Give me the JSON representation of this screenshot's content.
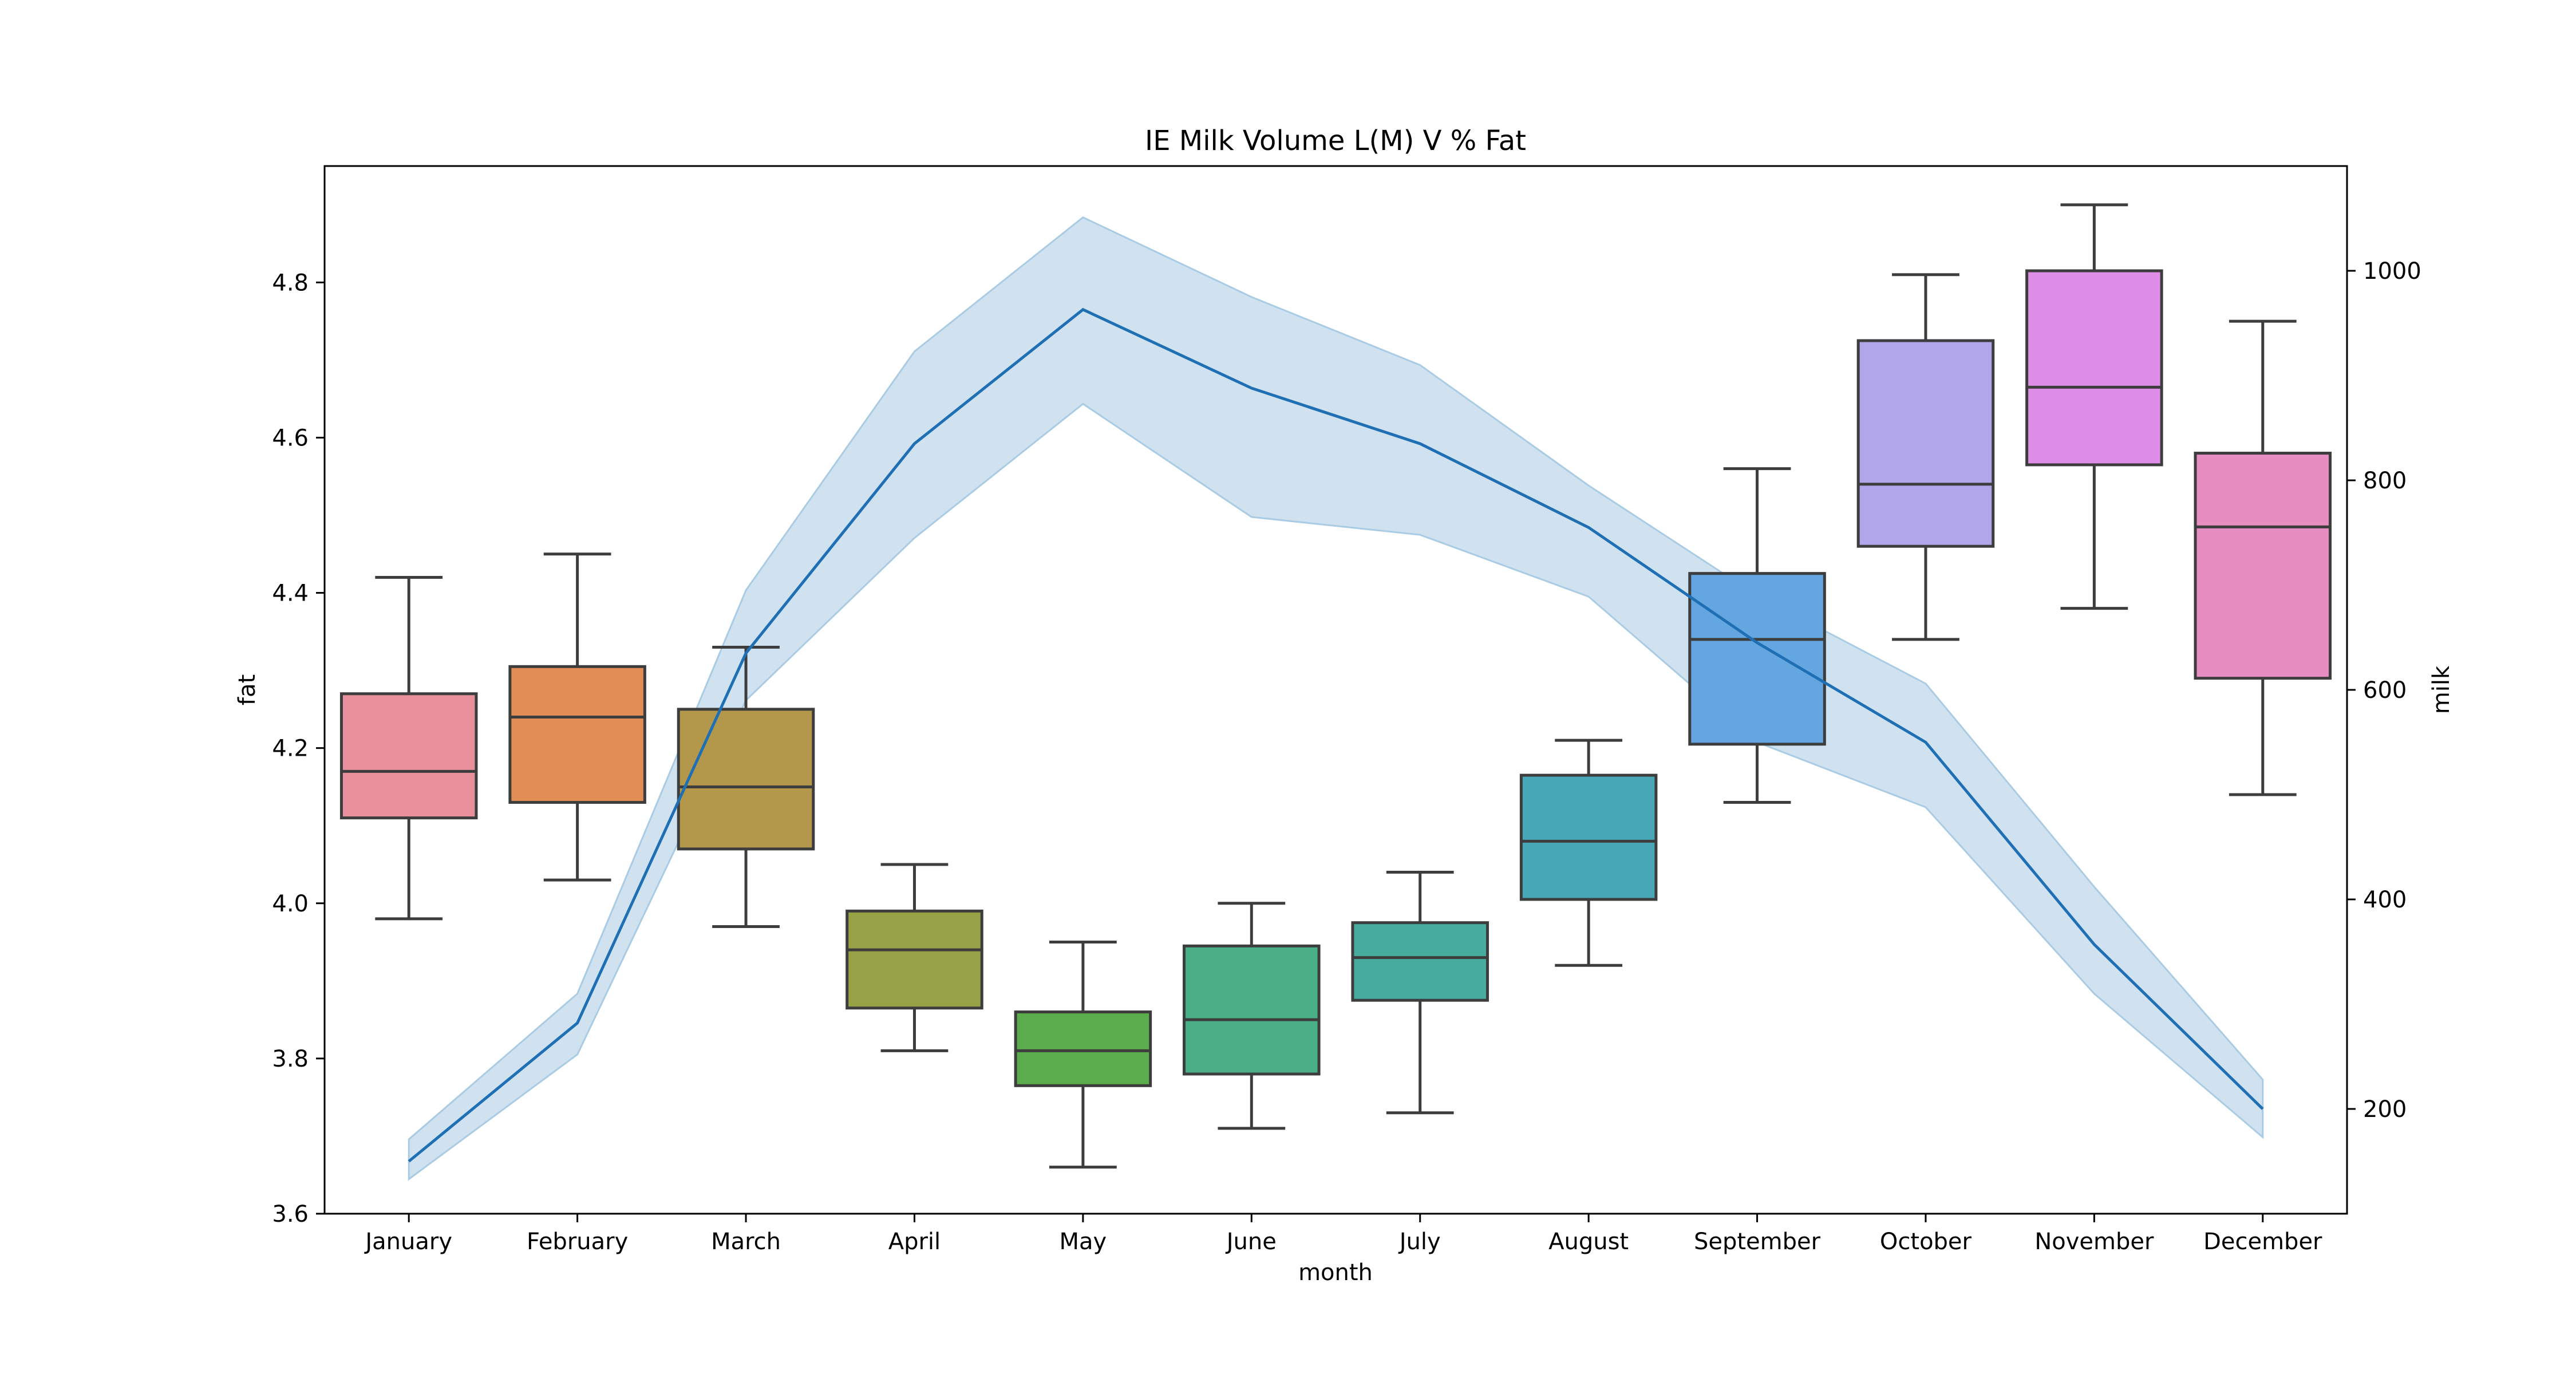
{
  "chart_data": {
    "type": "box",
    "title": "IE Milk Volume L(M) V % Fat",
    "xlabel": "month",
    "ylabel_left": "fat",
    "ylabel_right": "milk",
    "categories": [
      "January",
      "February",
      "March",
      "April",
      "May",
      "June",
      "July",
      "August",
      "September",
      "October",
      "November",
      "December"
    ],
    "left_axis": {
      "range": [
        3.6,
        4.95
      ],
      "ticks": [
        3.6,
        3.8,
        4.0,
        4.2,
        4.4,
        4.6,
        4.8
      ]
    },
    "right_axis": {
      "range": [
        100,
        1100
      ],
      "ticks": [
        200,
        400,
        600,
        800,
        1000
      ]
    },
    "boxes": [
      {
        "month": "January",
        "whisker_low": 3.98,
        "q1": 4.11,
        "median": 4.17,
        "q3": 4.27,
        "whisker_high": 4.42,
        "color": "#e8909c"
      },
      {
        "month": "February",
        "whisker_low": 4.03,
        "q1": 4.13,
        "median": 4.24,
        "q3": 4.305,
        "whisker_high": 4.45,
        "color": "#e08e55"
      },
      {
        "month": "March",
        "whisker_low": 3.97,
        "q1": 4.07,
        "median": 4.15,
        "q3": 4.25,
        "whisker_high": 4.33,
        "color": "#b3974a"
      },
      {
        "month": "April",
        "whisker_low": 3.81,
        "q1": 3.865,
        "median": 3.94,
        "q3": 3.99,
        "whisker_high": 4.05,
        "color": "#97a246"
      },
      {
        "month": "May",
        "whisker_low": 3.66,
        "q1": 3.765,
        "median": 3.81,
        "q3": 3.86,
        "whisker_high": 3.95,
        "color": "#5aad4a"
      },
      {
        "month": "June",
        "whisker_low": 3.71,
        "q1": 3.78,
        "median": 3.85,
        "q3": 3.945,
        "whisker_high": 4.0,
        "color": "#4aaf87"
      },
      {
        "month": "July",
        "whisker_low": 3.73,
        "q1": 3.875,
        "median": 3.93,
        "q3": 3.975,
        "whisker_high": 4.04,
        "color": "#47ab9d"
      },
      {
        "month": "August",
        "whisker_low": 3.92,
        "q1": 4.005,
        "median": 4.08,
        "q3": 4.165,
        "whisker_high": 4.21,
        "color": "#49a8b8"
      },
      {
        "month": "September",
        "whisker_low": 4.13,
        "q1": 4.205,
        "median": 4.34,
        "q3": 4.425,
        "whisker_high": 4.56,
        "color": "#63a6e0"
      },
      {
        "month": "October",
        "whisker_low": 4.34,
        "q1": 4.46,
        "median": 4.54,
        "q3": 4.725,
        "whisker_high": 4.81,
        "color": "#b2a6ea"
      },
      {
        "month": "November",
        "whisker_low": 4.38,
        "q1": 4.565,
        "median": 4.665,
        "q3": 4.815,
        "whisker_high": 4.9,
        "color": "#de8de6"
      },
      {
        "month": "December",
        "whisker_low": 4.14,
        "q1": 4.29,
        "median": 4.485,
        "q3": 4.58,
        "whisker_high": 4.75,
        "color": "#e78dc2"
      }
    ],
    "milk_line": {
      "color": "#1f6fb4",
      "band_color": "#a9cbe4",
      "values": [
        150,
        282,
        635,
        835,
        963,
        888,
        835,
        755,
        645,
        550,
        357,
        200
      ],
      "band_low": [
        133,
        252,
        590,
        745,
        873,
        765,
        748,
        689,
        550,
        488,
        310,
        173
      ],
      "band_high": [
        171,
        310,
        695,
        923,
        1051,
        975,
        910,
        795,
        690,
        606,
        412,
        228
      ]
    }
  }
}
